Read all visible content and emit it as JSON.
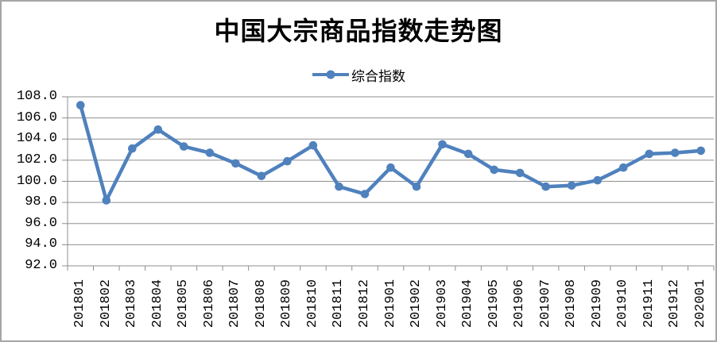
{
  "colors": {
    "series": "#4f81bd",
    "grid": "#8f8f8f",
    "axis": "#8f8f8f",
    "border": "#a6a6a6",
    "background": "#ffffff",
    "text": "#000000"
  },
  "chart_data": {
    "type": "line",
    "title": "中国大宗商品指数走势图",
    "series_name": "综合指数",
    "legend_entries": [
      "综合指数"
    ],
    "legend_position": "top-center",
    "marker_style": "circle",
    "grid": true,
    "xlabel": "",
    "ylabel": "",
    "ylim": [
      92.0,
      108.0
    ],
    "y_tick_step": 2.0,
    "y_tick_labels": [
      "108.0",
      "106.0",
      "104.0",
      "102.0",
      "100.0",
      "98.0",
      "96.0",
      "94.0",
      "92.0"
    ],
    "categories": [
      "201801",
      "201802",
      "201803",
      "201804",
      "201805",
      "201806",
      "201807",
      "201808",
      "201809",
      "201810",
      "201811",
      "201812",
      "201901",
      "201902",
      "201903",
      "201904",
      "201905",
      "201906",
      "201907",
      "201908",
      "201909",
      "201910",
      "201911",
      "201912",
      "202001"
    ],
    "values": [
      107.2,
      98.2,
      103.1,
      104.9,
      103.3,
      102.7,
      101.7,
      100.5,
      101.9,
      103.4,
      99.5,
      98.8,
      101.3,
      99.5,
      103.5,
      102.6,
      101.1,
      100.8,
      99.5,
      99.6,
      100.1,
      101.3,
      102.6,
      102.7,
      102.9
    ]
  }
}
